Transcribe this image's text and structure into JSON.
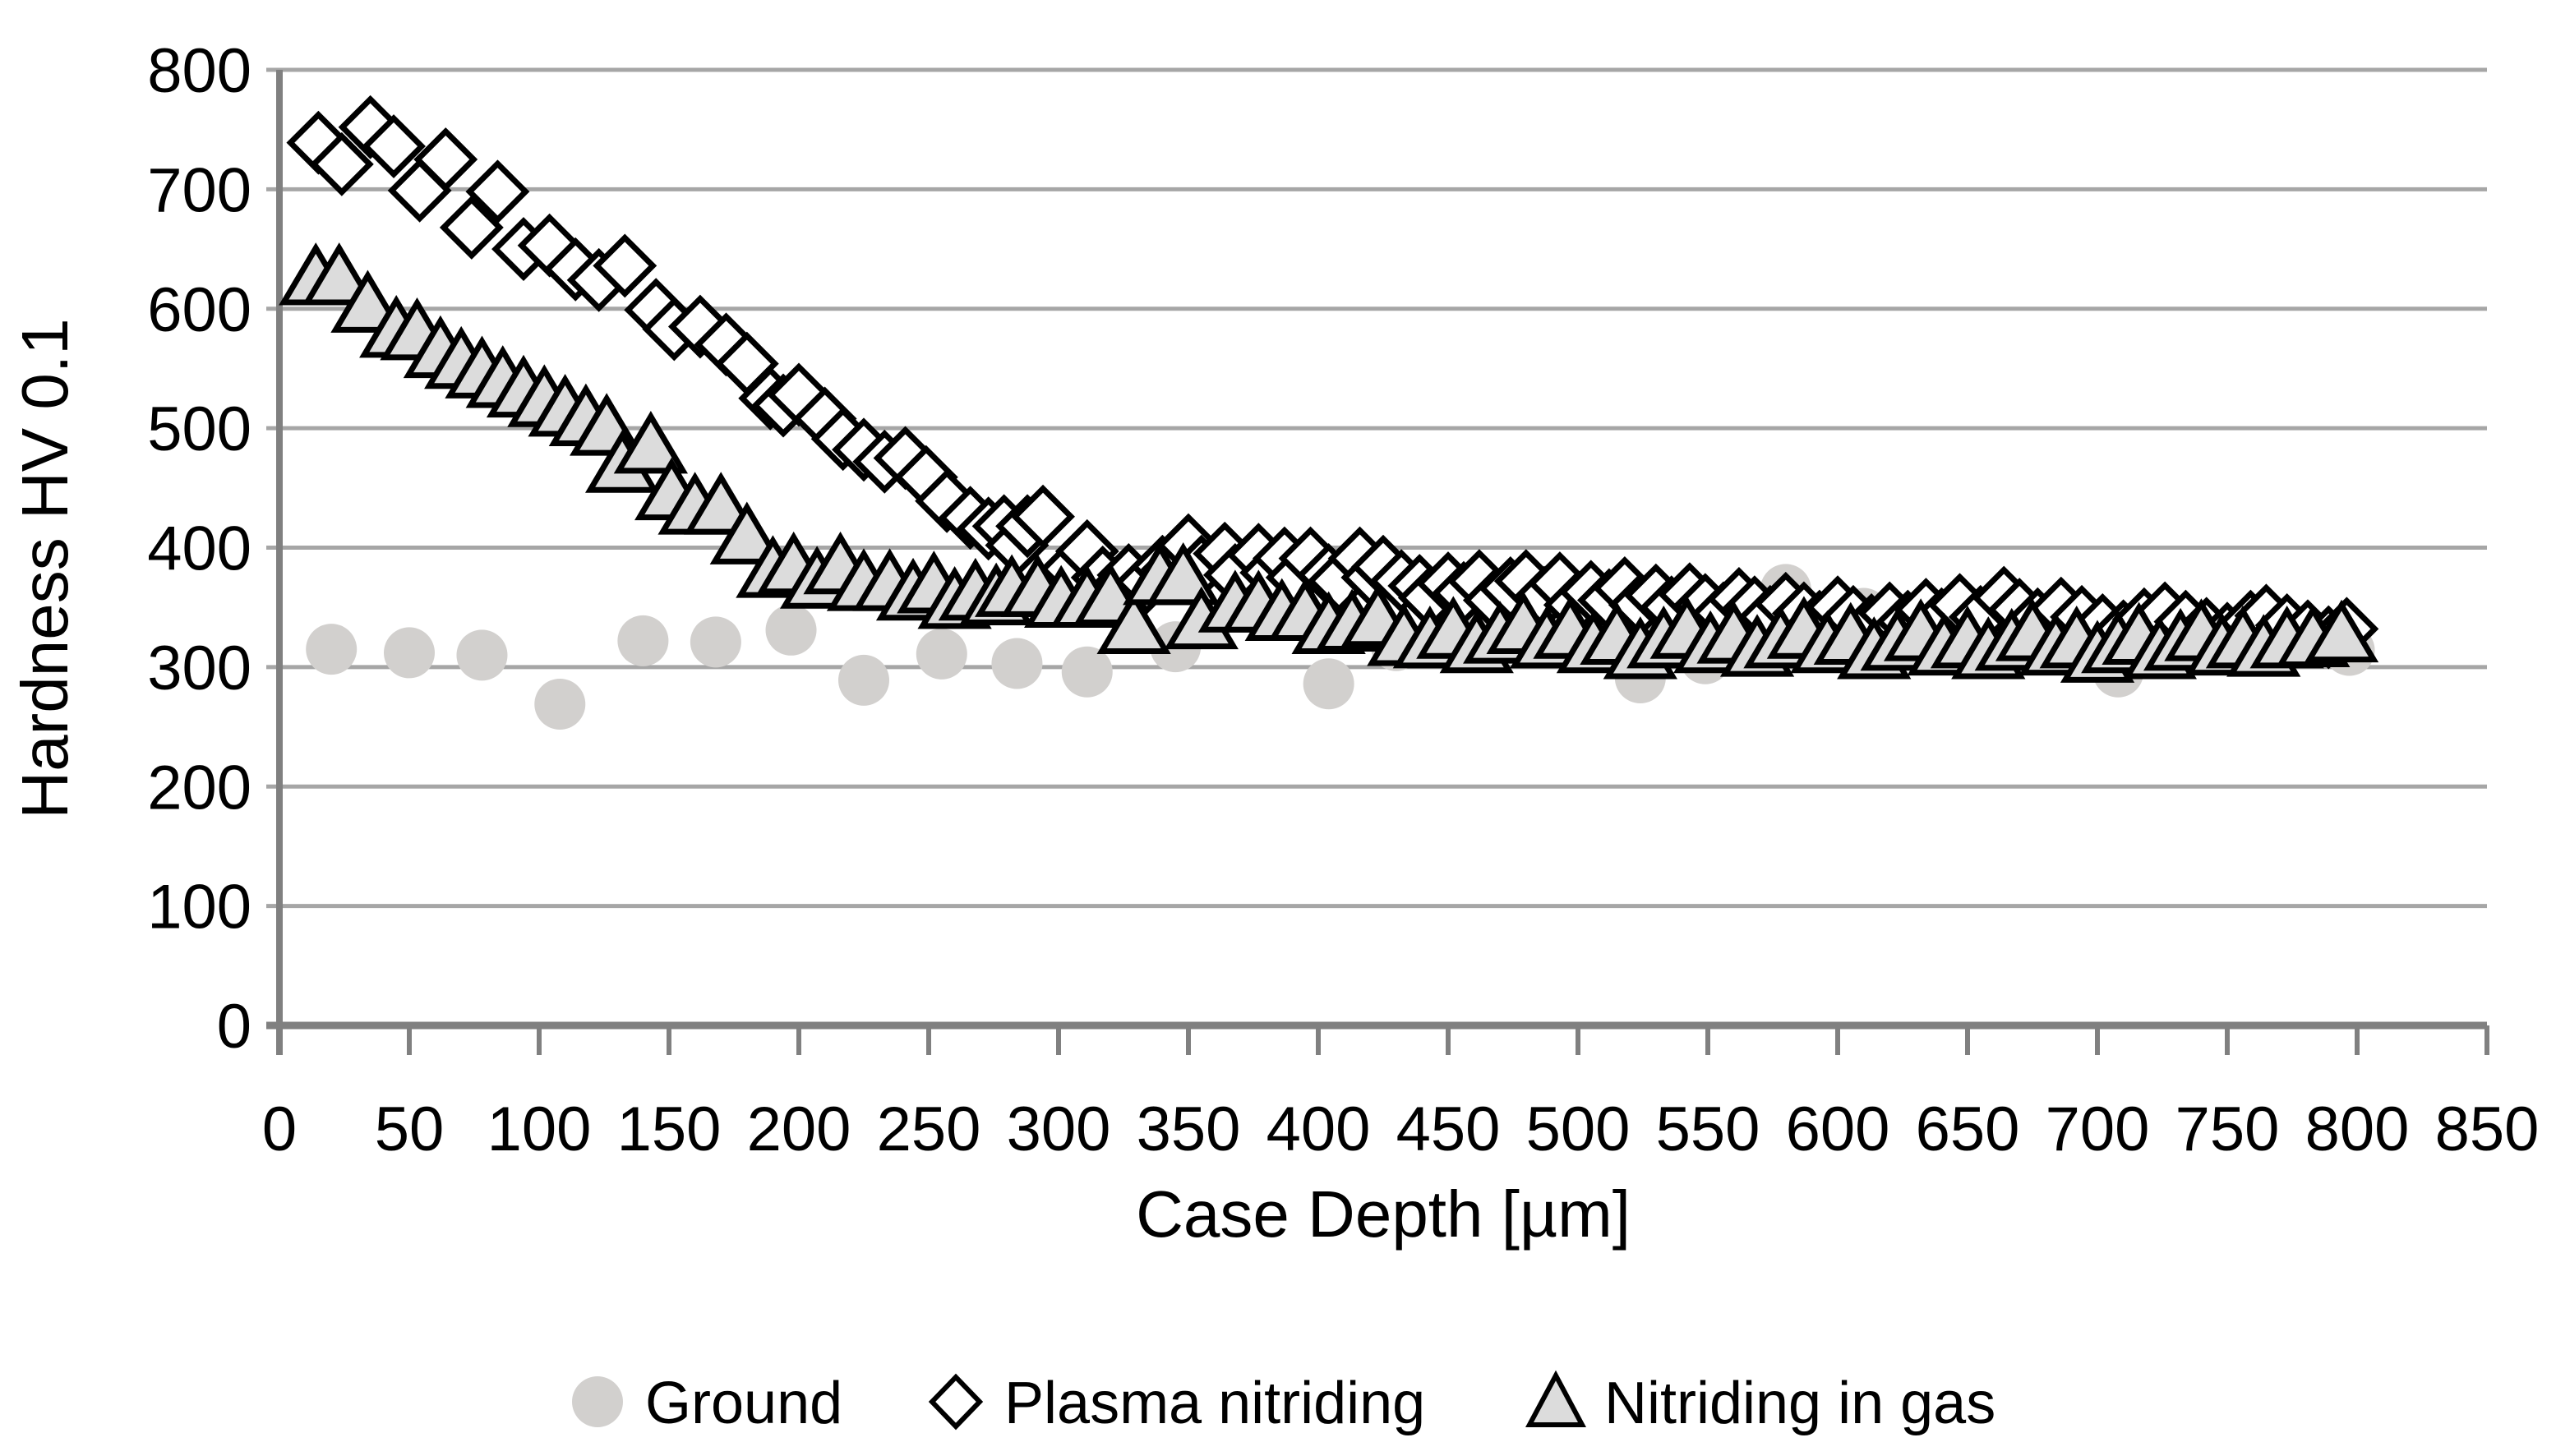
{
  "chart": {
    "y_axis": {
      "title": "Hardness HV 0.1",
      "tick_values": [
        0,
        100,
        200,
        300,
        400,
        500,
        600,
        700,
        800
      ]
    },
    "x_axis": {
      "title": "Case Depth [µm]",
      "tick_values": [
        0,
        50,
        100,
        150,
        200,
        250,
        300,
        350,
        400,
        450,
        500,
        550,
        600,
        650,
        700,
        750,
        800,
        850
      ]
    },
    "colors": {
      "grid": "#a6a6a6",
      "axis": "#808080",
      "circle_fill": "#d2d0ce",
      "triangle_fill": "#dcdcdc",
      "diamond_fill": "#ffffff",
      "marker_stroke": "#000000"
    }
  },
  "legend": {
    "items": [
      {
        "label": "Ground",
        "marker": "circle"
      },
      {
        "label": "Plasma nitriding",
        "marker": "diamond"
      },
      {
        "label": "Nitriding in gas",
        "marker": "triangle"
      }
    ]
  },
  "chart_data": {
    "type": "scatter",
    "title": "",
    "xlabel": "Case Depth [µm]",
    "ylabel": "Hardness HV 0.1",
    "xlim": [
      0,
      850
    ],
    "ylim": [
      0,
      800
    ],
    "grid": "horizontal",
    "legend_position": "bottom",
    "series": [
      {
        "name": "Ground",
        "marker": "circle",
        "points": [
          [
            20,
            315
          ],
          [
            50,
            312
          ],
          [
            78,
            310
          ],
          [
            108,
            269
          ],
          [
            140,
            322
          ],
          [
            168,
            321
          ],
          [
            197,
            331
          ],
          [
            225,
            289
          ],
          [
            255,
            311
          ],
          [
            284,
            303
          ],
          [
            311,
            296
          ],
          [
            345,
            317
          ],
          [
            404,
            286
          ],
          [
            430,
            318
          ],
          [
            464,
            327
          ],
          [
            495,
            349
          ],
          [
            524,
            291
          ],
          [
            549,
            307
          ],
          [
            580,
            365
          ],
          [
            610,
            345
          ],
          [
            646,
            342
          ],
          [
            708,
            296
          ],
          [
            739,
            333
          ],
          [
            767,
            330
          ],
          [
            797,
            314
          ]
        ]
      },
      {
        "name": "Plasma nitriding",
        "marker": "diamond",
        "points": [
          [
            15,
            739
          ],
          [
            24,
            721
          ],
          [
            35,
            752
          ],
          [
            44,
            736
          ],
          [
            54,
            699
          ],
          [
            64,
            725
          ],
          [
            74,
            668
          ],
          [
            84,
            698
          ],
          [
            94,
            650
          ],
          [
            104,
            653
          ],
          [
            114,
            633
          ],
          [
            123,
            624
          ],
          [
            133,
            636
          ],
          [
            145,
            599
          ],
          [
            152,
            583
          ],
          [
            162,
            585
          ],
          [
            172,
            570
          ],
          [
            180,
            554
          ],
          [
            189,
            525
          ],
          [
            194,
            519
          ],
          [
            200,
            528
          ],
          [
            210,
            508
          ],
          [
            217,
            491
          ],
          [
            225,
            482
          ],
          [
            233,
            472
          ],
          [
            241,
            475
          ],
          [
            249,
            459
          ],
          [
            257,
            439
          ],
          [
            266,
            425
          ],
          [
            273,
            416
          ],
          [
            279,
            418
          ],
          [
            284,
            402
          ],
          [
            288,
            418
          ],
          [
            294,
            426
          ],
          [
            305,
            382
          ],
          [
            311,
            397
          ],
          [
            317,
            375
          ],
          [
            322,
            363
          ],
          [
            327,
            377
          ],
          [
            334,
            371
          ],
          [
            340,
            384
          ],
          [
            344,
            382
          ],
          [
            350,
            402
          ],
          [
            355,
            384
          ],
          [
            364,
            395
          ],
          [
            368,
            377
          ],
          [
            377,
            394
          ],
          [
            382,
            379
          ],
          [
            387,
            391
          ],
          [
            392,
            375
          ],
          [
            397,
            391
          ],
          [
            404,
            377
          ],
          [
            408,
            372
          ],
          [
            416,
            391
          ],
          [
            421,
            375
          ],
          [
            425,
            384
          ],
          [
            432,
            372
          ],
          [
            439,
            368
          ],
          [
            443,
            358
          ],
          [
            450,
            370
          ],
          [
            456,
            362
          ],
          [
            462,
            372
          ],
          [
            468,
            356
          ],
          [
            474,
            366
          ],
          [
            480,
            372
          ],
          [
            487,
            358
          ],
          [
            493,
            370
          ],
          [
            499,
            352
          ],
          [
            505,
            363
          ],
          [
            512,
            356
          ],
          [
            518,
            366
          ],
          [
            524,
            352
          ],
          [
            530,
            360
          ],
          [
            536,
            350
          ],
          [
            543,
            361
          ],
          [
            549,
            352
          ],
          [
            556,
            345
          ],
          [
            562,
            357
          ],
          [
            568,
            350
          ],
          [
            574,
            342
          ],
          [
            580,
            353
          ],
          [
            587,
            345
          ],
          [
            593,
            338
          ],
          [
            600,
            350
          ],
          [
            606,
            342
          ],
          [
            613,
            335
          ],
          [
            620,
            345
          ],
          [
            627,
            338
          ],
          [
            634,
            348
          ],
          [
            640,
            340
          ],
          [
            647,
            352
          ],
          [
            655,
            342
          ],
          [
            664,
            358
          ],
          [
            670,
            348
          ],
          [
            677,
            340
          ],
          [
            686,
            349
          ],
          [
            694,
            342
          ],
          [
            702,
            335
          ],
          [
            710,
            330
          ],
          [
            718,
            340
          ],
          [
            726,
            345
          ],
          [
            734,
            338
          ],
          [
            742,
            332
          ],
          [
            750,
            328
          ],
          [
            759,
            338
          ],
          [
            765,
            343
          ],
          [
            773,
            335
          ],
          [
            781,
            330
          ],
          [
            789,
            325
          ],
          [
            796,
            332
          ]
        ]
      },
      {
        "name": "Nitriding in gas",
        "marker": "triangle",
        "points": [
          [
            14,
            626
          ],
          [
            23,
            626
          ],
          [
            34,
            603
          ],
          [
            45,
            582
          ],
          [
            53,
            580
          ],
          [
            62,
            565
          ],
          [
            70,
            556
          ],
          [
            78,
            548
          ],
          [
            86,
            540
          ],
          [
            94,
            532
          ],
          [
            102,
            524
          ],
          [
            110,
            516
          ],
          [
            118,
            508
          ],
          [
            126,
            500
          ],
          [
            132,
            469
          ],
          [
            143,
            485
          ],
          [
            151,
            446
          ],
          [
            160,
            434
          ],
          [
            170,
            434
          ],
          [
            180,
            409
          ],
          [
            190,
            381
          ],
          [
            198,
            384
          ],
          [
            207,
            372
          ],
          [
            216,
            384
          ],
          [
            225,
            370
          ],
          [
            235,
            370
          ],
          [
            244,
            362
          ],
          [
            252,
            368
          ],
          [
            260,
            355
          ],
          [
            268,
            362
          ],
          [
            276,
            358
          ],
          [
            282,
            365
          ],
          [
            292,
            365
          ],
          [
            301,
            356
          ],
          [
            311,
            356
          ],
          [
            320,
            358
          ],
          [
            329,
            334
          ],
          [
            339,
            375
          ],
          [
            348,
            375
          ],
          [
            355,
            338
          ],
          [
            368,
            352
          ],
          [
            377,
            352
          ],
          [
            386,
            345
          ],
          [
            395,
            345
          ],
          [
            404,
            334
          ],
          [
            413,
            336
          ],
          [
            423,
            340
          ],
          [
            433,
            324
          ],
          [
            443,
            322
          ],
          [
            452,
            330
          ],
          [
            461,
            318
          ],
          [
            470,
            326
          ],
          [
            479,
            334
          ],
          [
            488,
            322
          ],
          [
            497,
            330
          ],
          [
            506,
            318
          ],
          [
            515,
            325
          ],
          [
            524,
            313
          ],
          [
            533,
            322
          ],
          [
            542,
            330
          ],
          [
            551,
            318
          ],
          [
            560,
            326
          ],
          [
            569,
            315
          ],
          [
            578,
            322
          ],
          [
            587,
            330
          ],
          [
            596,
            318
          ],
          [
            605,
            325
          ],
          [
            614,
            313
          ],
          [
            623,
            320
          ],
          [
            632,
            328
          ],
          [
            641,
            316
          ],
          [
            650,
            322
          ],
          [
            658,
            313
          ],
          [
            667,
            320
          ],
          [
            675,
            328
          ],
          [
            684,
            316
          ],
          [
            692,
            322
          ],
          [
            700,
            310
          ],
          [
            708,
            318
          ],
          [
            716,
            325
          ],
          [
            724,
            313
          ],
          [
            732,
            320
          ],
          [
            740,
            328
          ],
          [
            748,
            316
          ],
          [
            756,
            322
          ],
          [
            764,
            315
          ],
          [
            773,
            322
          ],
          [
            783,
            323
          ],
          [
            794,
            327
          ]
        ]
      }
    ]
  }
}
